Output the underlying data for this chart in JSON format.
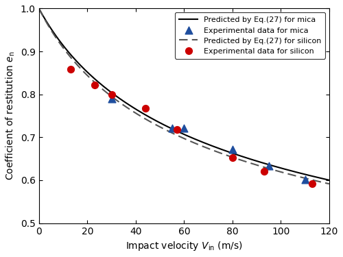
{
  "mica_exp_x": [
    30,
    55,
    60,
    80,
    95,
    110
  ],
  "mica_exp_y": [
    0.79,
    0.722,
    0.722,
    0.672,
    0.634,
    0.602
  ],
  "silicon_exp_x": [
    13,
    23,
    30,
    44,
    57,
    80,
    93,
    113
  ],
  "silicon_exp_y": [
    0.858,
    0.822,
    0.8,
    0.768,
    0.718,
    0.653,
    0.621,
    0.592
  ],
  "xlim": [
    0,
    120
  ],
  "ylim": [
    0.5,
    1.0
  ],
  "xlabel": "Impact velocity $V_{\\mathrm{in}}$ (m/s)",
  "ylabel": "Coefficient of restitution $e_{\\mathrm{n}}$",
  "mica_line_color": "#000000",
  "silicon_line_color": "#555555",
  "mica_exp_color": "#1f4e9e",
  "silicon_exp_color": "#cc0000",
  "legend_labels": [
    "Predicted by Eq.(27) for mica",
    "Experimental data for mica",
    "Predicted by Eq.(27) for silicon",
    "Experimental data for silicon"
  ],
  "mica_params": {
    "A": 1.0,
    "k": 0.0043
  },
  "silicon_params": {
    "A": 1.0,
    "k": 0.005
  }
}
